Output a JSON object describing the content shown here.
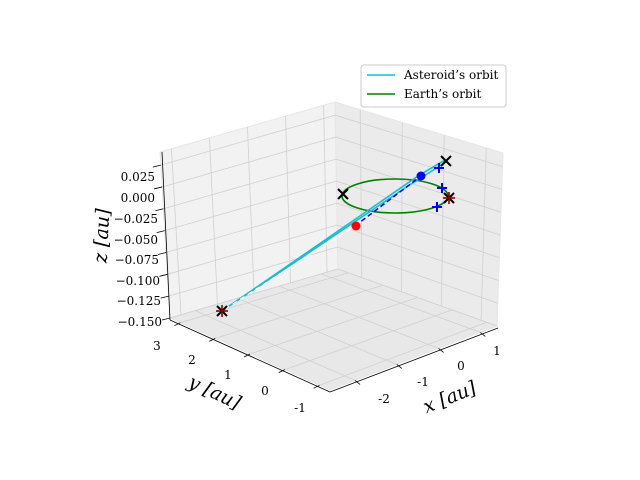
{
  "chart_data": {
    "type": "line",
    "projection": "3d",
    "title": "",
    "xlabel": "x [au]",
    "ylabel": "y [au]",
    "zlabel": "z [au]",
    "xlim": [
      -2.6,
      1.4
    ],
    "ylim": [
      -1.3,
      3.3
    ],
    "zlim": [
      -0.15,
      0.04
    ],
    "x_ticks": [
      -2,
      -1,
      0,
      1
    ],
    "y_ticks": [
      -1,
      0,
      1,
      2,
      3
    ],
    "z_ticks": [
      0.025,
      0.0,
      -0.025,
      -0.05,
      -0.075,
      -0.1,
      -0.125,
      -0.15
    ],
    "z_tick_labels": [
      "0.025",
      "0.000",
      "−0.025",
      "−0.050",
      "−0.075",
      "−0.100",
      "−0.125",
      "−0.150"
    ],
    "grid": true,
    "legend_position": "top-right",
    "series": [
      {
        "name": "Asteroid’s orbit",
        "color": "#17becf",
        "style": "solid"
      },
      {
        "name": "Earth’s orbit",
        "color": "#008000",
        "style": "solid"
      }
    ],
    "colors": {
      "asteroid_orbit": "#17becf",
      "earth_orbit": "#008000",
      "marker_blue": "#0000ff",
      "marker_red": "#ff0000",
      "marker_black": "#000000",
      "marker_dark_red": "#8b0000"
    }
  }
}
